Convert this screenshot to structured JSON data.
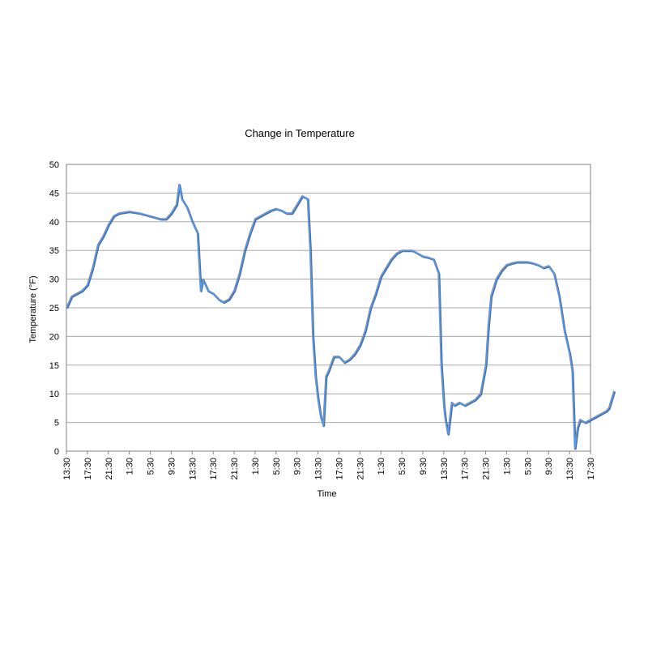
{
  "chart_data": {
    "type": "line",
    "title": "Change in Temperature",
    "xlabel": "Time",
    "ylabel": "Temperature (°F)",
    "ylim": [
      0,
      50
    ],
    "yticks": [
      0,
      5,
      10,
      15,
      20,
      25,
      30,
      35,
      40,
      45,
      50
    ],
    "grid": true,
    "x_tick_labels": [
      "13:30",
      "17:30",
      "21:30",
      "1:30",
      "5:30",
      "9:30",
      "13:30",
      "17:30",
      "21:30",
      "1:30",
      "5:30",
      "9:30",
      "13:30",
      "17:30",
      "21:30",
      "1:30",
      "5:30",
      "9:30",
      "13:30",
      "17:30",
      "21:30",
      "1:30",
      "5:30",
      "9:30",
      "13:30",
      "17:30"
    ],
    "x_tick_step_hours": 4,
    "series": [
      {
        "color": "#5599ee",
        "points": [
          [
            0,
            25
          ],
          [
            1,
            27
          ],
          [
            2,
            27.5
          ],
          [
            3,
            28
          ],
          [
            4,
            29
          ],
          [
            5,
            32
          ],
          [
            6,
            36
          ],
          [
            7,
            37.5
          ],
          [
            8,
            39.5
          ],
          [
            9,
            41
          ],
          [
            10,
            41.5
          ],
          [
            12,
            41.8
          ],
          [
            14,
            41.5
          ],
          [
            16,
            41
          ],
          [
            18,
            40.5
          ],
          [
            19,
            40.5
          ],
          [
            20,
            41.5
          ],
          [
            21,
            43
          ],
          [
            21.5,
            46.5
          ],
          [
            22,
            44
          ],
          [
            23,
            42.5
          ],
          [
            24,
            40
          ],
          [
            25,
            38
          ],
          [
            25.6,
            28
          ],
          [
            26,
            30
          ],
          [
            27,
            28
          ],
          [
            28,
            27.5
          ],
          [
            29,
            26.5
          ],
          [
            30,
            26
          ],
          [
            31,
            26.5
          ],
          [
            32,
            28
          ],
          [
            33,
            31
          ],
          [
            34,
            35
          ],
          [
            35,
            38
          ],
          [
            36,
            40.5
          ],
          [
            37,
            41
          ],
          [
            38,
            41.5
          ],
          [
            39,
            42
          ],
          [
            40,
            42.3
          ],
          [
            41,
            42
          ],
          [
            42,
            41.5
          ],
          [
            43,
            41.5
          ],
          [
            44,
            43
          ],
          [
            45,
            44.5
          ],
          [
            46,
            44
          ],
          [
            46.5,
            35
          ],
          [
            47,
            20
          ],
          [
            47.5,
            13
          ],
          [
            48,
            9
          ],
          [
            48.5,
            6
          ],
          [
            49,
            4.5
          ],
          [
            49.5,
            13
          ],
          [
            50,
            14
          ],
          [
            51,
            16.5
          ],
          [
            52,
            16.5
          ],
          [
            53,
            15.5
          ],
          [
            54,
            16
          ],
          [
            55,
            17
          ],
          [
            56,
            18.5
          ],
          [
            57,
            21
          ],
          [
            58,
            25
          ],
          [
            59,
            27.5
          ],
          [
            60,
            30.5
          ],
          [
            61,
            32
          ],
          [
            62,
            33.5
          ],
          [
            63,
            34.5
          ],
          [
            64,
            35
          ],
          [
            65,
            35
          ],
          [
            66,
            35
          ],
          [
            67,
            34.5
          ],
          [
            68,
            34
          ],
          [
            69,
            33.8
          ],
          [
            70,
            33.5
          ],
          [
            71,
            31
          ],
          [
            71.5,
            15
          ],
          [
            72,
            8
          ],
          [
            72.3,
            5.5
          ],
          [
            72.8,
            3
          ],
          [
            73.5,
            8.5
          ],
          [
            74,
            8
          ],
          [
            75,
            8.5
          ],
          [
            76,
            8
          ],
          [
            77,
            8.5
          ],
          [
            78,
            9
          ],
          [
            79,
            10
          ],
          [
            80,
            15
          ],
          [
            80.5,
            22
          ],
          [
            81,
            27
          ],
          [
            82,
            30
          ],
          [
            83,
            31.5
          ],
          [
            84,
            32.5
          ],
          [
            85,
            32.8
          ],
          [
            86,
            33
          ],
          [
            87,
            33
          ],
          [
            88,
            33
          ],
          [
            89,
            32.8
          ],
          [
            90,
            32.5
          ],
          [
            91,
            32
          ],
          [
            92,
            32.3
          ],
          [
            93,
            31
          ],
          [
            94,
            27
          ],
          [
            95,
            21
          ],
          [
            96,
            17
          ],
          [
            96.5,
            14
          ],
          [
            97,
            0.5
          ],
          [
            97.5,
            4
          ],
          [
            98,
            5.5
          ],
          [
            99,
            5
          ],
          [
            100,
            5.5
          ],
          [
            101,
            6
          ],
          [
            102,
            6.5
          ],
          [
            103,
            7
          ],
          [
            103.5,
            7.5
          ],
          [
            104,
            9
          ],
          [
            104.5,
            10.5
          ]
        ]
      }
    ]
  }
}
